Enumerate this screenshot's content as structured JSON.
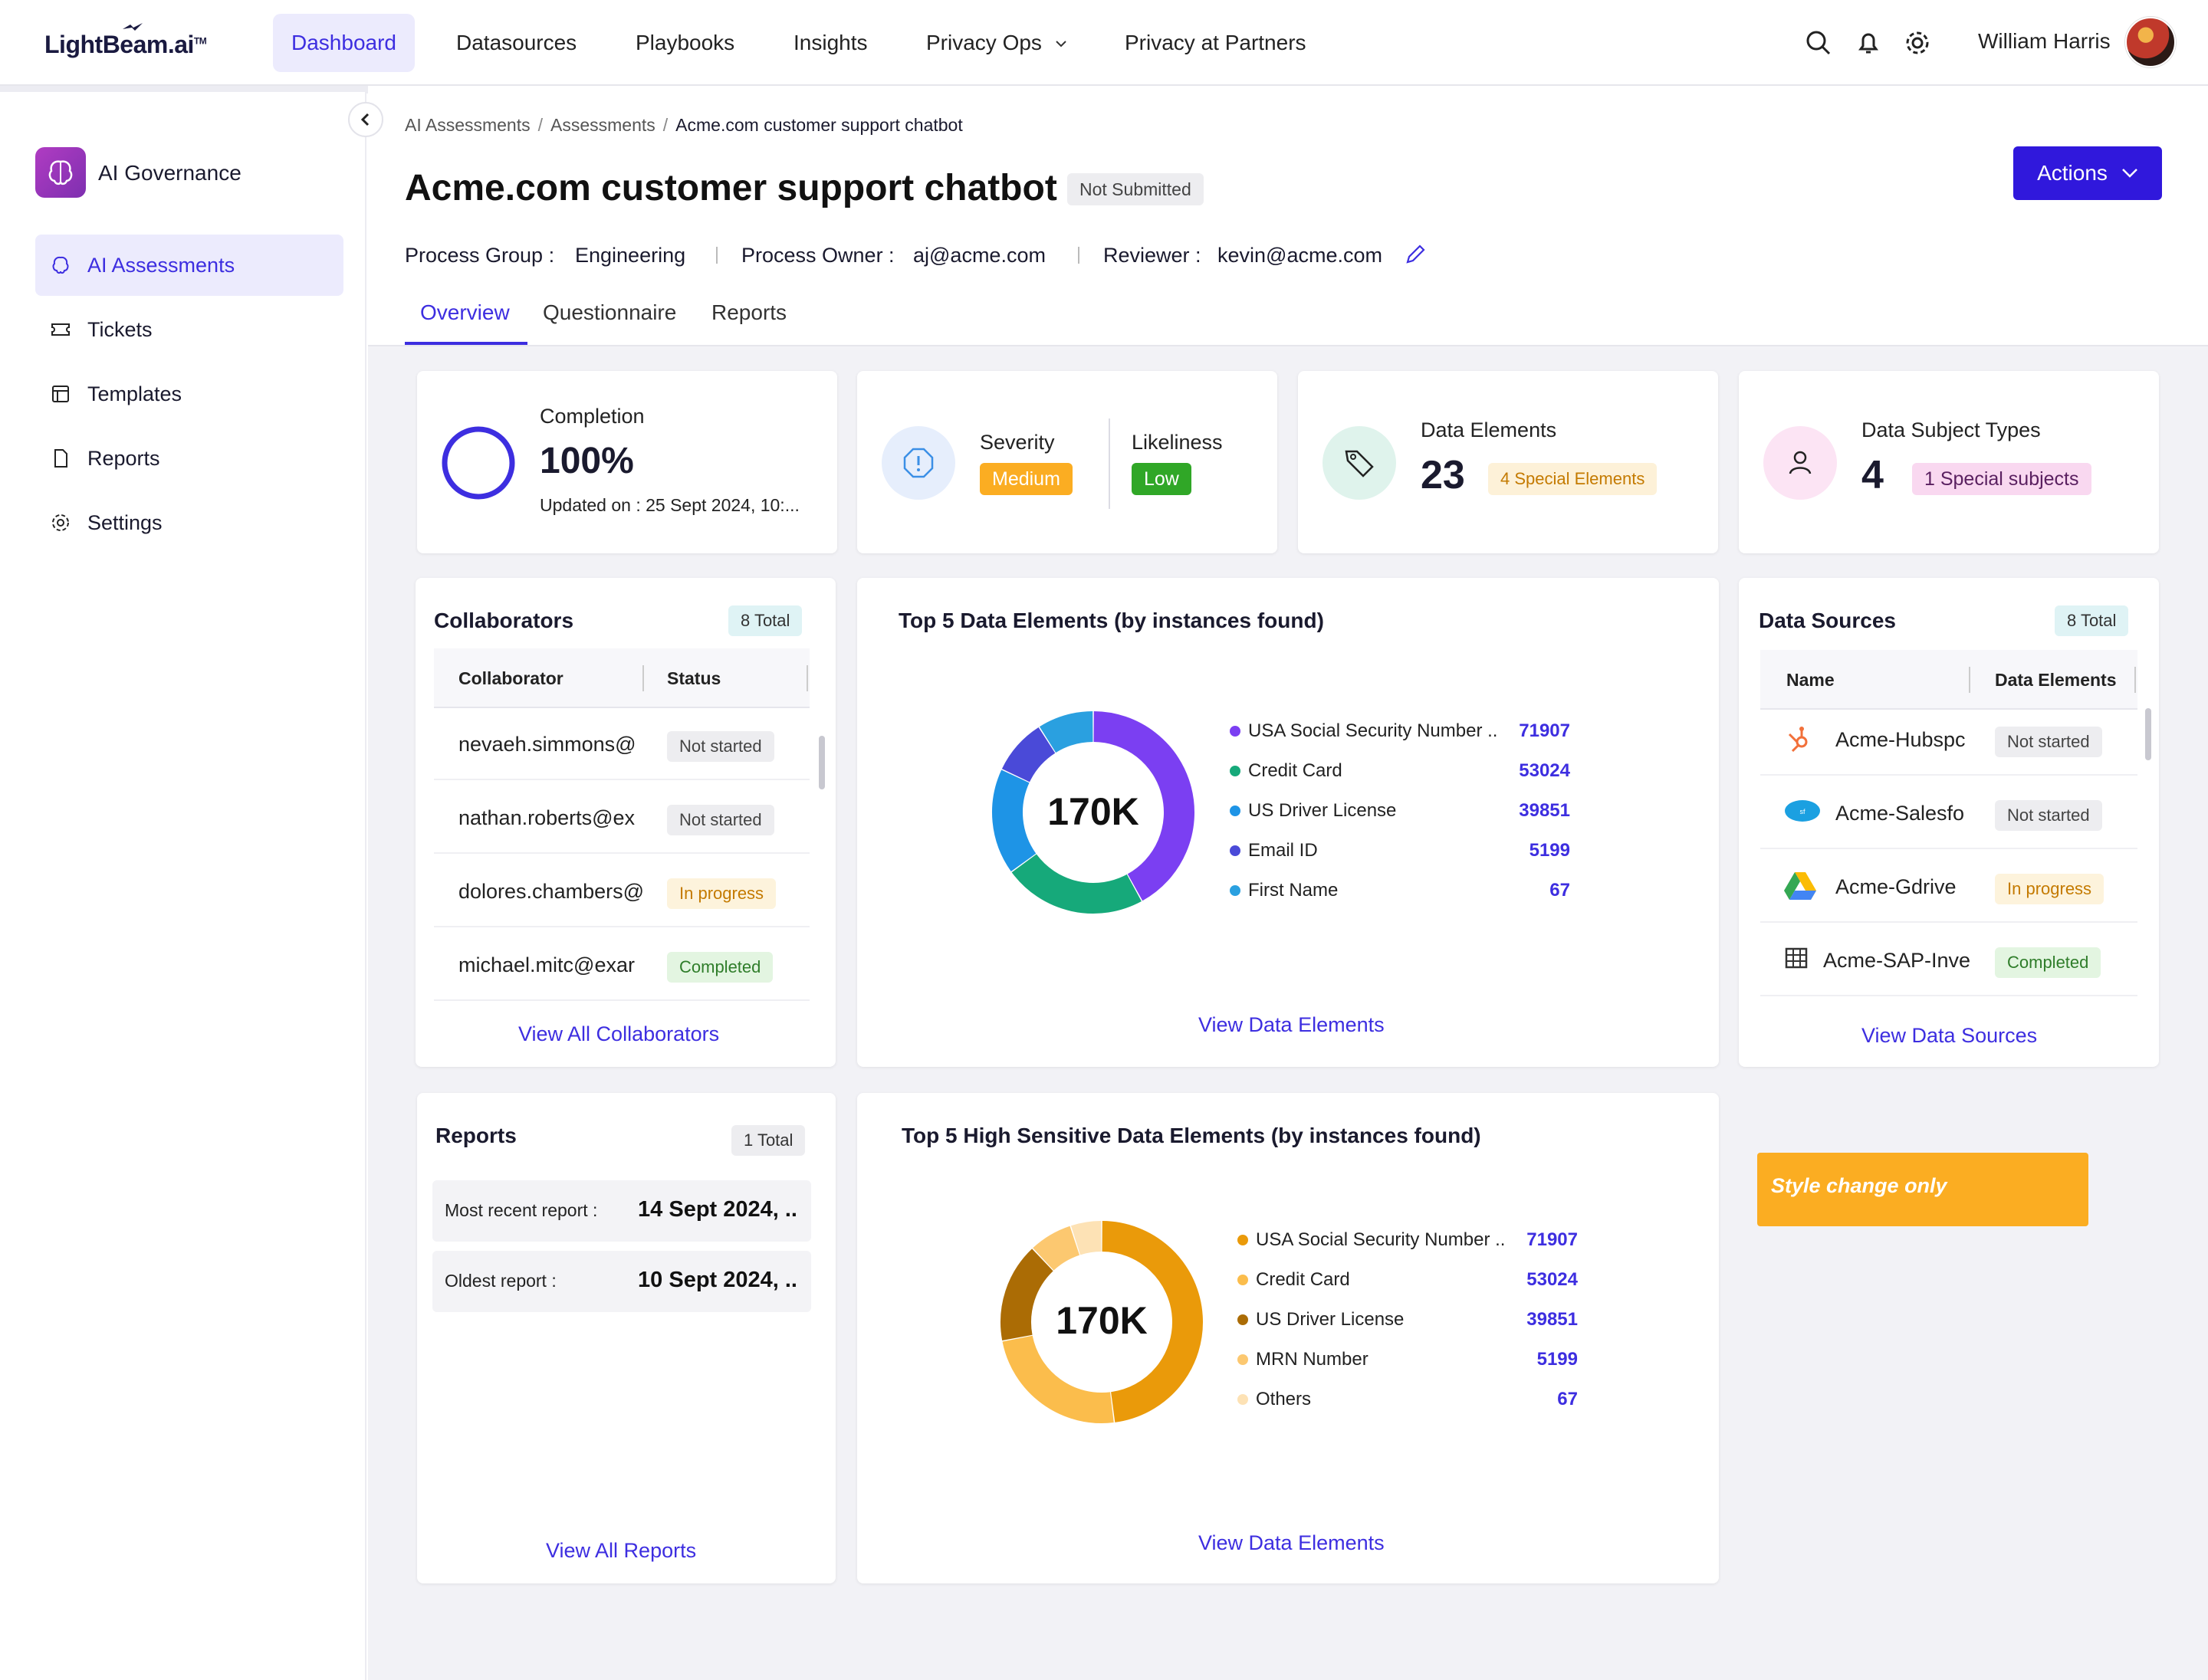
{
  "app": {
    "logo": "LightBeam.ai",
    "logo_tm": "TM"
  },
  "nav": {
    "items": [
      {
        "label": "Dashboard"
      },
      {
        "label": "Datasources"
      },
      {
        "label": "Playbooks"
      },
      {
        "label": "Insights"
      },
      {
        "label": "Privacy Ops"
      },
      {
        "label": "Privacy at Partners"
      }
    ],
    "user_name": "William Harris"
  },
  "sidebar": {
    "title": "AI Governance",
    "items": [
      {
        "label": "AI Assessments",
        "icon": "brain-icon"
      },
      {
        "label": "Tickets",
        "icon": "ticket-icon"
      },
      {
        "label": "Templates",
        "icon": "template-icon"
      },
      {
        "label": "Reports",
        "icon": "document-icon"
      },
      {
        "label": "Settings",
        "icon": "gear-icon"
      }
    ]
  },
  "breadcrumb": {
    "items": [
      "AI Assessments",
      "Assessments"
    ],
    "current": "Acme.com customer support chatbot"
  },
  "page": {
    "title": "Acme.com customer support chatbot",
    "status": "Not Submitted",
    "actions_label": "Actions",
    "process_group_label": "Process Group :",
    "process_group": "Engineering",
    "process_owner_label": "Process Owner :",
    "process_owner": "aj@acme.com",
    "reviewer_label": "Reviewer :",
    "reviewer": "kevin@acme.com",
    "tabs": [
      "Overview",
      "Questionnaire",
      "Reports"
    ]
  },
  "summary": {
    "completion": {
      "label": "Completion",
      "value": "100%",
      "percent": 100,
      "updated": "Updated on : 25 Sept 2024, 10:..."
    },
    "severity": {
      "label": "Severity",
      "value": "Medium"
    },
    "likeliness": {
      "label": "Likeliness",
      "value": "Low"
    },
    "data_elements": {
      "label": "Data Elements",
      "value": "23",
      "special": "4 Special Elements"
    },
    "data_subjects": {
      "label": "Data Subject Types",
      "value": "4",
      "special": "1 Special subjects"
    }
  },
  "collaborators": {
    "title": "Collaborators",
    "total": "8 Total",
    "col_collaborator": "Collaborator",
    "col_status": "Status",
    "rows": [
      {
        "name": "nevaeh.simmons@",
        "status": "Not started",
        "kind": "ns"
      },
      {
        "name": "nathan.roberts@ex",
        "status": "Not started",
        "kind": "ns"
      },
      {
        "name": "dolores.chambers@",
        "status": "In progress",
        "kind": "ip"
      },
      {
        "name": "michael.mitc@exar",
        "status": "Completed",
        "kind": "cp"
      }
    ],
    "link": "View All Collaborators"
  },
  "top5": {
    "title": "Top 5 Data Elements (by instances found)",
    "center": "170K",
    "link": "View Data Elements"
  },
  "top5_sensitive": {
    "title": "Top 5 High Sensitive Data Elements (by instances found)",
    "center": "170K",
    "link": "View Data Elements"
  },
  "datasources": {
    "title": "Data Sources",
    "total": "8 Total",
    "col_name": "Name",
    "col_elements": "Data Elements",
    "rows": [
      {
        "name": "Acme-Hubspc",
        "status": "Not started",
        "kind": "ns",
        "icon": "hubspot-icon"
      },
      {
        "name": "Acme-Salesfo",
        "status": "Not started",
        "kind": "ns",
        "icon": "salesforce-icon"
      },
      {
        "name": "Acme-Gdrive",
        "status": "In progress",
        "kind": "ip",
        "icon": "gdrive-icon"
      },
      {
        "name": "Acme-SAP-Inve",
        "status": "Completed",
        "kind": "cp",
        "icon": "table-icon"
      }
    ],
    "link": "View Data Sources"
  },
  "reports": {
    "title": "Reports",
    "total": "1 Total",
    "recent_label": "Most recent report :",
    "recent_value": "14 Sept 2024, ..",
    "oldest_label": "Oldest report :",
    "oldest_value": "10 Sept 2024, ..",
    "link": "View All Reports"
  },
  "note": "Style change only",
  "colors": {
    "accent": "#3d2ee0",
    "button": "#3018dc"
  },
  "chart_data": [
    {
      "type": "pie",
      "title": "Top 5 Data Elements (by instances found)",
      "categories": [
        "USA Social Security Number ..",
        "Credit Card",
        "US Driver License",
        "Email ID",
        "First Name"
      ],
      "values": [
        71907,
        53024,
        39851,
        5199,
        67
      ],
      "display_values": [
        "71907",
        "53024",
        "39851",
        "5199",
        "67"
      ],
      "colors": [
        "#7b3ff2",
        "#16a97a",
        "#1e94e6",
        "#4a4ad8",
        "#2aa0e0"
      ],
      "display_segments": [
        0.42,
        0.23,
        0.17,
        0.09,
        0.09
      ],
      "center_label": "170K"
    },
    {
      "type": "pie",
      "title": "Top 5 High Sensitive Data Elements (by instances found)",
      "categories": [
        "USA Social Security Number ..",
        "Credit Card",
        "US Driver License",
        "MRN Number",
        "Others"
      ],
      "values": [
        71907,
        53024,
        39851,
        5199,
        67
      ],
      "display_values": [
        "71907",
        "53024",
        "39851",
        "5199",
        "67"
      ],
      "colors": [
        "#ea9a0a",
        "#fbbd4c",
        "#ab6c05",
        "#fcc870",
        "#fde2b5"
      ],
      "display_segments": [
        0.48,
        0.24,
        0.16,
        0.07,
        0.05
      ],
      "center_label": "170K"
    }
  ]
}
